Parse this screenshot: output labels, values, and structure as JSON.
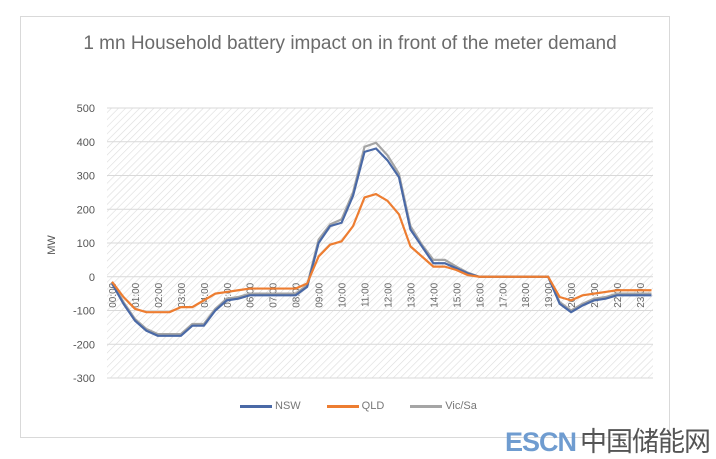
{
  "chart_data": {
    "type": "line",
    "title": "1 mn Household battery impact on  in front of the meter demand",
    "ylabel": "MW",
    "xlabel": "",
    "ylim": [
      -300,
      500
    ],
    "yticks": [
      500,
      400,
      300,
      200,
      100,
      0,
      -100,
      -200,
      -300
    ],
    "grid": true,
    "legend": "bottom",
    "x_tick_labels": [
      "00:00",
      "01:00",
      "02:00",
      "03:00",
      "04:00",
      "05:00",
      "06:00",
      "07:00",
      "08:00",
      "09:00",
      "10:00",
      "11:00",
      "12:00",
      "13:00",
      "14:00",
      "15:00",
      "16:00",
      "17:00",
      "18:00",
      "19:00",
      "20:00",
      "21:00",
      "22:00",
      "23:00"
    ],
    "x": [
      "00:00",
      "00:30",
      "01:00",
      "01:30",
      "02:00",
      "02:30",
      "03:00",
      "03:30",
      "04:00",
      "04:30",
      "05:00",
      "05:30",
      "06:00",
      "06:30",
      "07:00",
      "07:30",
      "08:00",
      "08:30",
      "09:00",
      "09:30",
      "10:00",
      "10:30",
      "11:00",
      "11:30",
      "12:00",
      "12:30",
      "13:00",
      "13:30",
      "14:00",
      "14:30",
      "15:00",
      "15:30",
      "16:00",
      "16:30",
      "17:00",
      "17:30",
      "18:00",
      "18:30",
      "19:00",
      "19:30",
      "20:00",
      "20:30",
      "21:00",
      "21:30",
      "22:00",
      "22:30",
      "23:00",
      "23:30"
    ],
    "series": [
      {
        "name": "NSW",
        "color": "#4a69a6",
        "values": [
          -20,
          -80,
          -130,
          -160,
          -175,
          -175,
          -175,
          -145,
          -145,
          -100,
          -70,
          -65,
          -55,
          -55,
          -55,
          -55,
          -55,
          -30,
          100,
          150,
          160,
          240,
          370,
          380,
          345,
          295,
          140,
          90,
          40,
          40,
          25,
          10,
          0,
          0,
          0,
          0,
          0,
          0,
          0,
          -80,
          -105,
          -85,
          -70,
          -65,
          -55,
          -55,
          -55,
          -55
        ]
      },
      {
        "name": "QLD",
        "color": "#ed7d31",
        "values": [
          -15,
          -60,
          -95,
          -105,
          -105,
          -105,
          -90,
          -90,
          -70,
          -50,
          -45,
          -40,
          -35,
          -35,
          -35,
          -35,
          -35,
          -20,
          60,
          95,
          105,
          150,
          235,
          245,
          225,
          185,
          90,
          60,
          30,
          30,
          20,
          5,
          0,
          0,
          0,
          0,
          0,
          0,
          0,
          -60,
          -70,
          -55,
          -50,
          -45,
          -40,
          -40,
          -40,
          -40
        ]
      },
      {
        "name": "Vic/Sa",
        "color": "#a5a5a5",
        "values": [
          -15,
          -75,
          -125,
          -155,
          -170,
          -170,
          -170,
          -140,
          -140,
          -95,
          -65,
          -60,
          -50,
          -50,
          -50,
          -50,
          -50,
          -25,
          110,
          155,
          170,
          250,
          385,
          397,
          360,
          305,
          150,
          95,
          50,
          50,
          30,
          12,
          0,
          0,
          0,
          0,
          0,
          0,
          0,
          -75,
          -100,
          -80,
          -65,
          -60,
          -50,
          -50,
          -50,
          -50
        ]
      }
    ]
  },
  "watermark": {
    "latin": "ESCN",
    "cjk": "中国储能网"
  }
}
